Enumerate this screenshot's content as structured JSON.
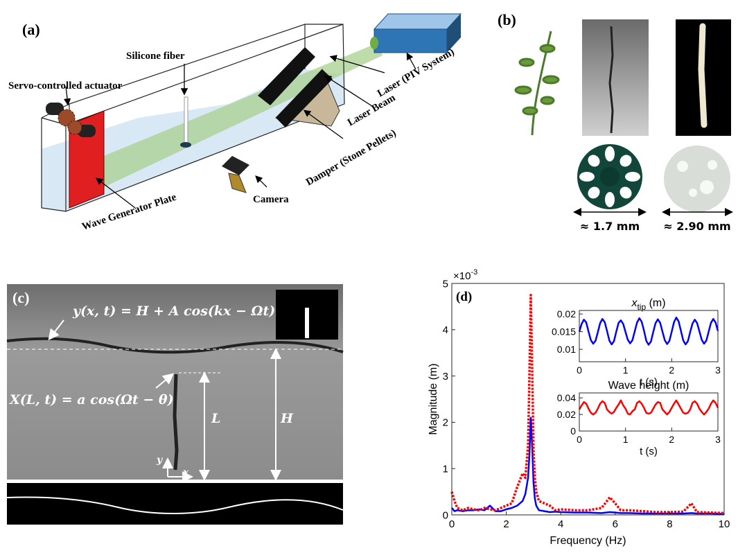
{
  "panel_a": {
    "label": "(a)",
    "annotations": [
      "Servo-controlled actuator",
      "Silicone fiber",
      "Laser (PIV System)",
      "Laser Beam",
      "Damper (Stone Pellets)",
      "Camera",
      "Wave Generator Plate"
    ]
  },
  "panel_b": {
    "label": "(b)",
    "dimensions": [
      "≈ 1.7 mm",
      "≈ 2.90 mm"
    ]
  },
  "panel_c": {
    "label": "(c)",
    "surface_equation": "y(x, t) = H + A cos(kx − Ωt)",
    "fiber_equation": "X(L, t) = a cos(Ωt − θ)",
    "length_label": "L",
    "depth_label": "H",
    "axis_y": "y",
    "axis_x": "x"
  },
  "chart_data": [
    {
      "type": "line",
      "panel_label": "(d)",
      "multiplier": {
        "base": "×10",
        "exponent": "-3"
      },
      "xlabel": "Frequency (Hz)",
      "ylabel": "Magnitude (m)",
      "x": [
        0,
        0.1,
        0.2,
        0.4,
        0.6,
        0.8,
        1.0,
        1.2,
        1.4,
        1.6,
        1.8,
        2.0,
        2.2,
        2.4,
        2.6,
        2.7,
        2.8,
        2.85,
        2.9,
        2.95,
        3.0,
        3.05,
        3.1,
        3.2,
        3.4,
        3.6,
        3.8,
        4.0,
        4.5,
        5.0,
        5.5,
        5.8,
        6.0,
        6.2,
        6.5,
        7.0,
        7.5,
        8.0,
        8.5,
        8.8,
        9.0,
        9.5,
        10
      ],
      "series": [
        {
          "color": "#0000ff",
          "style": "solid",
          "values": [
            0.15,
            0.08,
            0.1,
            0.08,
            0.1,
            0.1,
            0.12,
            0.1,
            0.2,
            0.08,
            0.08,
            0.12,
            0.15,
            0.2,
            0.3,
            0.45,
            0.8,
            1.3,
            2.1,
            1.5,
            0.7,
            0.35,
            0.2,
            0.1,
            0.08,
            0.06,
            0.07,
            0.06,
            0.05,
            0.05,
            0.04,
            0.06,
            0.05,
            0.04,
            0.04,
            0.03,
            0.03,
            0.03,
            0.03,
            0.04,
            0.03,
            0.03,
            0.02
          ]
        },
        {
          "color": "#ff0000",
          "style": "dotted",
          "values": [
            0.5,
            0.3,
            0.15,
            0.1,
            0.15,
            0.12,
            0.1,
            0.15,
            0.12,
            0.1,
            0.15,
            0.2,
            0.25,
            0.6,
            0.9,
            0.8,
            1.5,
            3.0,
            4.75,
            3.2,
            1.4,
            0.8,
            0.5,
            0.3,
            0.25,
            0.2,
            0.1,
            0.12,
            0.1,
            0.1,
            0.15,
            0.38,
            0.25,
            0.1,
            0.1,
            0.08,
            0.06,
            0.06,
            0.07,
            0.25,
            0.06,
            0.05,
            0.04
          ]
        }
      ],
      "xlim": [
        0,
        10
      ],
      "ylim": [
        0,
        5
      ],
      "xticks": [
        0,
        2,
        4,
        6,
        8,
        10
      ],
      "yticks": [
        0,
        1,
        2,
        3,
        4,
        5
      ]
    },
    {
      "type": "line",
      "title": {
        "symbol": "x",
        "subscript": "tip",
        "unit": " (m)"
      },
      "xlabel": "t (s)",
      "x": [
        0,
        0.05,
        0.1,
        0.15,
        0.2,
        0.25,
        0.3,
        0.35,
        0.4,
        0.45,
        0.5,
        0.55,
        0.6,
        0.65,
        0.7,
        0.75,
        0.8,
        0.85,
        0.9,
        0.95,
        1,
        1.05,
        1.1,
        1.15,
        1.2,
        1.25,
        1.3,
        1.35,
        1.4,
        1.45,
        1.5,
        1.55,
        1.6,
        1.65,
        1.7,
        1.75,
        1.8,
        1.85,
        1.9,
        1.95,
        2,
        2.05,
        2.1,
        2.15,
        2.2,
        2.25,
        2.3,
        2.35,
        2.4,
        2.45,
        2.5,
        2.55,
        2.6,
        2.65,
        2.7,
        2.75,
        2.8,
        2.85,
        2.9,
        2.95,
        3
      ],
      "series": [
        {
          "color": "#0000ff",
          "style": "solid",
          "values": [
            0.015,
            0.0172,
            0.0184,
            0.0176,
            0.015,
            0.0126,
            0.0116,
            0.0124,
            0.0148,
            0.0174,
            0.0186,
            0.0177,
            0.0152,
            0.0125,
            0.0114,
            0.0123,
            0.015,
            0.0175,
            0.0182,
            0.0172,
            0.0149,
            0.0127,
            0.0117,
            0.0126,
            0.0151,
            0.0176,
            0.0188,
            0.0178,
            0.0153,
            0.0124,
            0.0113,
            0.0122,
            0.0149,
            0.0174,
            0.0185,
            0.0175,
            0.015,
            0.0126,
            0.0115,
            0.0124,
            0.015,
            0.0177,
            0.019,
            0.0179,
            0.0152,
            0.0125,
            0.0114,
            0.0123,
            0.0149,
            0.0173,
            0.0184,
            0.0174,
            0.0151,
            0.0127,
            0.0116,
            0.0125,
            0.015,
            0.0175,
            0.0186,
            0.0176,
            0.0152
          ]
        }
      ],
      "xlim": [
        0,
        3
      ],
      "ylim": [
        0.0065,
        0.021
      ],
      "xticks": [
        0,
        1,
        2,
        3
      ],
      "yticks": [
        0.01,
        0.015,
        0.02
      ]
    },
    {
      "type": "line",
      "title": "Wave height (m)",
      "xlabel": "t (s)",
      "x": [
        0,
        0.05,
        0.1,
        0.15,
        0.2,
        0.25,
        0.3,
        0.35,
        0.4,
        0.45,
        0.5,
        0.55,
        0.6,
        0.65,
        0.7,
        0.75,
        0.8,
        0.85,
        0.9,
        0.95,
        1,
        1.05,
        1.1,
        1.15,
        1.2,
        1.25,
        1.3,
        1.35,
        1.4,
        1.45,
        1.5,
        1.55,
        1.6,
        1.65,
        1.7,
        1.75,
        1.8,
        1.85,
        1.9,
        1.95,
        2,
        2.05,
        2.1,
        2.15,
        2.2,
        2.25,
        2.3,
        2.35,
        2.4,
        2.45,
        2.5,
        2.55,
        2.6,
        2.65,
        2.7,
        2.75,
        2.8,
        2.85,
        2.9,
        2.95,
        3
      ],
      "series": [
        {
          "color": "#ff0000",
          "style": "solid",
          "values": [
            0.026,
            0.031,
            0.035,
            0.033,
            0.027,
            0.022,
            0.02,
            0.022,
            0.027,
            0.033,
            0.036,
            0.034,
            0.026,
            0.023,
            0.021,
            0.023,
            0.028,
            0.032,
            0.037,
            0.031,
            0.027,
            0.021,
            0.02,
            0.024,
            0.026,
            0.034,
            0.036,
            0.033,
            0.028,
            0.022,
            0.021,
            0.022,
            0.027,
            0.032,
            0.035,
            0.034,
            0.026,
            0.023,
            0.02,
            0.023,
            0.028,
            0.033,
            0.037,
            0.032,
            0.027,
            0.022,
            0.021,
            0.022,
            0.026,
            0.034,
            0.036,
            0.033,
            0.027,
            0.023,
            0.02,
            0.023,
            0.027,
            0.033,
            0.037,
            0.034,
            0.028
          ]
        }
      ],
      "xlim": [
        0,
        3
      ],
      "ylim": [
        0,
        0.046
      ],
      "xticks": [
        0,
        1,
        2,
        3
      ],
      "yticks": [
        0,
        0.02,
        0.04
      ]
    }
  ]
}
